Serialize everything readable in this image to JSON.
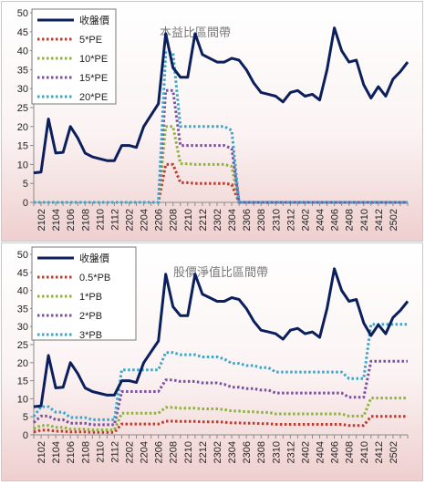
{
  "chart_data": [
    {
      "type": "line",
      "title": "本益比區間帶",
      "xlabel": "",
      "ylabel": "",
      "ylim": [
        0,
        50
      ],
      "yticks": [
        0,
        5,
        10,
        15,
        20,
        25,
        30,
        35,
        40,
        45,
        50
      ],
      "x_tick_labels": [
        "2102",
        "2104",
        "2106",
        "2108",
        "2110",
        "2112",
        "2202",
        "2204",
        "2206",
        "2208",
        "2210",
        "2212",
        "2302",
        "2304",
        "2306",
        "2308",
        "2310",
        "2312",
        "2402",
        "2404",
        "2406",
        "2408",
        "2410",
        "2412",
        "2502"
      ],
      "grid": false,
      "legend_position": "top-left",
      "series": [
        {
          "name": "收盤價",
          "color": "#0b1f5c",
          "style": "solid",
          "values": [
            7.8,
            8,
            22,
            13,
            13.2,
            20,
            17,
            13,
            12,
            11.5,
            11,
            11,
            15,
            15,
            14.5,
            20,
            23,
            26,
            44.5,
            35.5,
            33,
            33,
            44.5,
            39,
            38,
            37,
            37,
            38,
            37.5,
            35,
            31.5,
            29,
            28.5,
            28,
            26.5,
            29,
            29.5,
            28,
            28.5,
            27,
            35,
            46,
            40,
            37,
            37.5,
            31,
            27.5,
            30.5,
            28,
            32.5,
            34.5,
            37
          ]
        },
        {
          "name": "5*PE",
          "color": "#c0392b",
          "style": "dotted",
          "values": [
            0,
            0,
            0,
            0,
            0,
            0,
            0,
            0,
            0,
            0,
            0,
            0,
            0,
            0,
            0,
            0,
            0,
            0,
            10,
            10,
            5.2,
            5.2,
            5,
            5,
            5,
            5,
            5,
            4.7,
            0,
            0,
            0,
            0,
            0,
            0,
            0,
            0,
            0,
            0,
            0,
            0,
            0,
            0,
            0,
            0,
            0,
            0,
            0,
            0,
            0,
            0,
            0,
            0
          ]
        },
        {
          "name": "10*PE",
          "color": "#8db33a",
          "style": "dotted",
          "values": [
            0,
            0,
            0,
            0,
            0,
            0,
            0,
            0,
            0,
            0,
            0,
            0,
            0,
            0,
            0,
            0,
            0,
            0,
            20,
            20,
            10.2,
            10.2,
            10,
            10,
            10,
            10,
            10,
            9.5,
            0,
            0,
            0,
            0,
            0,
            0,
            0,
            0,
            0,
            0,
            0,
            0,
            0,
            0,
            0,
            0,
            0,
            0,
            0,
            0,
            0,
            0,
            0,
            0
          ]
        },
        {
          "name": "15*PE",
          "color": "#7b4fa0",
          "style": "dotted",
          "values": [
            0,
            0,
            0,
            0,
            0,
            0,
            0,
            0,
            0,
            0,
            0,
            0,
            0,
            0,
            0,
            0,
            0,
            0,
            29.5,
            29.5,
            15,
            15,
            15,
            15,
            15,
            15,
            15,
            14.2,
            0,
            0,
            0,
            0,
            0,
            0,
            0,
            0,
            0,
            0,
            0,
            0,
            0,
            0,
            0,
            0,
            0,
            0,
            0,
            0,
            0,
            0,
            0,
            0
          ]
        },
        {
          "name": "20*PE",
          "color": "#3aa6c8",
          "style": "dotted",
          "values": [
            0,
            0,
            0,
            0,
            0,
            0,
            0,
            0,
            0,
            0,
            0,
            0,
            0,
            0,
            0,
            0,
            0,
            0,
            39.5,
            39.5,
            20,
            20,
            20,
            20,
            20,
            20,
            20,
            19,
            0,
            0,
            0,
            0,
            0,
            0,
            0,
            0,
            0,
            0,
            0,
            0,
            0,
            0,
            0,
            0,
            0,
            0,
            0,
            0,
            0,
            0,
            0,
            0
          ]
        }
      ]
    },
    {
      "type": "line",
      "title": "股價淨值比區間帶",
      "xlabel": "",
      "ylabel": "",
      "ylim": [
        0,
        50
      ],
      "yticks": [
        0,
        5,
        10,
        15,
        20,
        25,
        30,
        35,
        40,
        45,
        50
      ],
      "x_tick_labels": [
        "2102",
        "2104",
        "2106",
        "2108",
        "2110",
        "2112",
        "2202",
        "2204",
        "2206",
        "2208",
        "2210",
        "2212",
        "2302",
        "2304",
        "2306",
        "2308",
        "2310",
        "2312",
        "2402",
        "2404",
        "2406",
        "2408",
        "2410",
        "2412",
        "2502"
      ],
      "grid": false,
      "legend_position": "top-left",
      "series": [
        {
          "name": "收盤價",
          "color": "#0b1f5c",
          "style": "solid",
          "values": [
            7.8,
            8,
            22,
            13,
            13.2,
            20,
            17,
            13,
            12,
            11.5,
            11,
            11,
            15,
            15,
            14.5,
            20,
            23,
            26,
            44.5,
            35.5,
            33,
            33,
            44.5,
            39,
            38,
            37,
            37,
            38,
            37.5,
            35,
            31.5,
            29,
            28.5,
            28,
            26.5,
            29,
            29.5,
            28,
            28.5,
            27,
            35,
            46,
            40,
            37,
            37.5,
            31,
            27.5,
            30.5,
            28,
            32.5,
            34.5,
            37
          ]
        },
        {
          "name": "0.5*PB",
          "color": "#c0392b",
          "style": "dotted",
          "values": [
            0.8,
            1.3,
            1.3,
            1,
            1,
            0.8,
            0.8,
            0.8,
            0.7,
            0.7,
            0.7,
            0.7,
            3,
            3,
            3,
            3,
            3,
            3,
            3.8,
            3.8,
            3.7,
            3.7,
            3.7,
            3.6,
            3.6,
            3.6,
            3.5,
            3.3,
            3.3,
            3.2,
            3.2,
            3.1,
            3.1,
            2.9,
            2.9,
            2.9,
            2.9,
            2.9,
            2.9,
            2.9,
            2.9,
            2.9,
            2.9,
            2.6,
            2.6,
            2.6,
            5.1,
            5.1,
            5.1,
            5.1,
            5.1,
            5.1
          ]
        },
        {
          "name": "1*PB",
          "color": "#8db33a",
          "style": "dotted",
          "values": [
            1.7,
            2.6,
            2.6,
            2.1,
            2.1,
            1.6,
            1.6,
            1.6,
            1.4,
            1.4,
            1.4,
            1.4,
            6,
            6,
            6,
            6,
            6,
            6,
            7.6,
            7.6,
            7.4,
            7.4,
            7.4,
            7.2,
            7.2,
            7.2,
            7,
            6.6,
            6.6,
            6.4,
            6.4,
            6.2,
            6.2,
            5.8,
            5.8,
            5.8,
            5.8,
            5.8,
            5.8,
            5.8,
            5.8,
            5.8,
            5.8,
            5.2,
            5.2,
            5.2,
            10.2,
            10.2,
            10.2,
            10.2,
            10.2,
            10.2
          ]
        },
        {
          "name": "2*PB",
          "color": "#7b4fa0",
          "style": "dotted",
          "values": [
            3.4,
            5.2,
            5.2,
            4.2,
            4.2,
            3.2,
            3.2,
            3.2,
            2.8,
            2.8,
            2.8,
            2.8,
            12,
            12,
            12,
            12,
            12,
            12,
            15.2,
            15.2,
            14.8,
            14.8,
            14.8,
            14.4,
            14.4,
            14.4,
            14,
            13.2,
            13.2,
            12.8,
            12.8,
            12.4,
            12.4,
            11.6,
            11.6,
            11.6,
            11.6,
            11.6,
            11.6,
            11.6,
            11.6,
            11.6,
            11.6,
            10.4,
            10.4,
            10.4,
            20.4,
            20.4,
            20.4,
            20.4,
            20.4,
            20.4
          ]
        },
        {
          "name": "3*PB",
          "color": "#3aa6c8",
          "style": "dotted",
          "values": [
            5.1,
            7.8,
            7.8,
            6.3,
            6.3,
            4.8,
            4.8,
            4.8,
            4.2,
            4.2,
            4.2,
            4.2,
            18,
            18,
            18,
            18,
            18,
            18,
            22.8,
            22.8,
            22.2,
            22.2,
            22.2,
            21.6,
            21.6,
            21.6,
            21,
            19.8,
            19.8,
            19.2,
            19.2,
            18.6,
            18.6,
            17.4,
            17.4,
            17.4,
            17.4,
            17.4,
            17.4,
            17.4,
            17.4,
            17.4,
            17.4,
            15.6,
            15.6,
            15.6,
            30.6,
            30.6,
            30.6,
            30.6,
            30.6,
            30.6
          ]
        }
      ]
    }
  ]
}
